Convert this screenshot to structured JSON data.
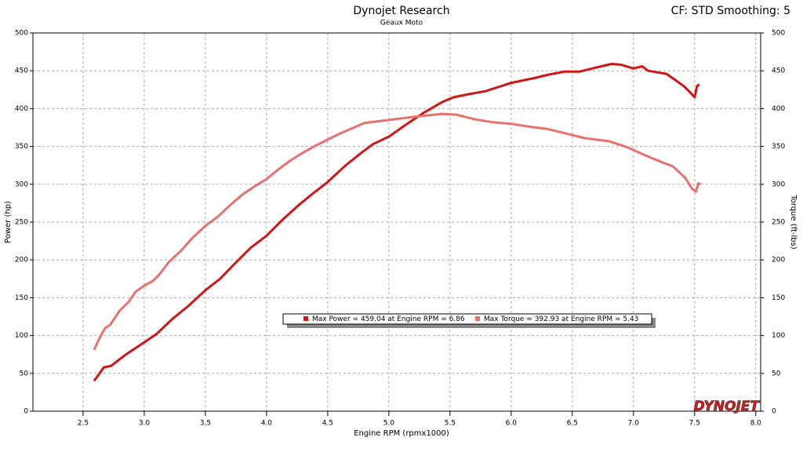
{
  "chart_data": {
    "type": "line",
    "title": "Dynojet Research",
    "subtitle": "Geaux Moto",
    "settings_label": "CF: STD Smoothing: 5",
    "x_label": "Engine RPM (rpmx1000)",
    "y_label": "Power (hp)",
    "y2_label": "Torque (ft-lbs)",
    "logo": "DYNOJET",
    "grid": true,
    "xlim": [
      2.09,
      8.04
    ],
    "xticks": [
      2.5,
      {
        "value": 3,
        "label": "3.0"
      },
      3.5,
      {
        "value": 4,
        "label": "4.0"
      },
      4.5,
      {
        "value": 5,
        "label": "5.0"
      },
      5.5,
      {
        "value": 6,
        "label": "6.0"
      },
      6.5,
      {
        "value": 7,
        "label": "7.0"
      },
      7.5,
      {
        "value": 8,
        "label": "8.0"
      }
    ],
    "ylim": [
      0,
      500
    ],
    "yticks": [
      0,
      50,
      100,
      150,
      200,
      250,
      300,
      350,
      400,
      450,
      500
    ],
    "y2lim": [
      0,
      500
    ],
    "y2ticks": [
      0,
      50,
      100,
      150,
      200,
      250,
      300,
      350,
      400,
      450,
      500
    ],
    "series": [
      {
        "name": "Max Power = 459.04 at Engine RPM = 6.86",
        "color": "#d41414",
        "axis": "y",
        "x": [
          2.59,
          2.67,
          2.73,
          2.85,
          3.0,
          3.1,
          3.23,
          3.36,
          3.5,
          3.62,
          3.74,
          3.87,
          4.0,
          4.13,
          4.26,
          4.38,
          4.5,
          4.64,
          4.77,
          4.87,
          5.0,
          5.15,
          5.28,
          5.44,
          5.53,
          5.65,
          5.79,
          6.0,
          6.18,
          6.31,
          6.44,
          6.56,
          6.71,
          6.82,
          6.9,
          7.0,
          7.07,
          7.12,
          7.27,
          7.41,
          7.46,
          7.5,
          7.52,
          7.54
        ],
        "values": [
          40,
          58,
          60,
          75,
          91,
          102,
          122,
          139,
          160,
          175,
          195,
          216,
          232,
          253,
          272,
          288,
          303,
          324,
          341,
          353,
          363,
          380,
          394,
          409,
          415,
          419,
          423,
          434,
          440,
          445,
          449,
          449,
          455,
          459,
          458,
          453,
          456,
          450,
          446,
          430,
          422,
          415,
          430,
          432
        ]
      },
      {
        "name": "Max Torque = 392.93 at Engine RPM = 5.43",
        "color": "#ea7070",
        "axis": "y2",
        "x": [
          2.59,
          2.63,
          2.68,
          2.72,
          2.8,
          2.87,
          2.93,
          3.0,
          3.07,
          3.12,
          3.2,
          3.3,
          3.4,
          3.5,
          3.6,
          3.7,
          3.8,
          3.9,
          4.0,
          4.1,
          4.2,
          4.3,
          4.4,
          4.5,
          4.6,
          4.7,
          4.8,
          5.0,
          5.2,
          5.43,
          5.55,
          5.7,
          5.85,
          6.0,
          6.15,
          6.3,
          6.45,
          6.6,
          6.8,
          6.95,
          7.1,
          7.25,
          7.32,
          7.42,
          7.48,
          7.51,
          7.53,
          7.55
        ],
        "values": [
          81,
          95,
          110,
          114,
          133,
          144,
          158,
          166,
          172,
          180,
          197,
          212,
          230,
          245,
          257,
          272,
          286,
          297,
          307,
          320,
          332,
          342,
          351,
          359,
          367,
          374,
          381,
          385,
          389,
          393,
          392,
          386,
          382,
          380,
          376,
          373,
          367,
          361,
          357,
          349,
          338,
          328,
          324,
          309,
          294,
          290,
          301,
          300
        ]
      }
    ]
  }
}
